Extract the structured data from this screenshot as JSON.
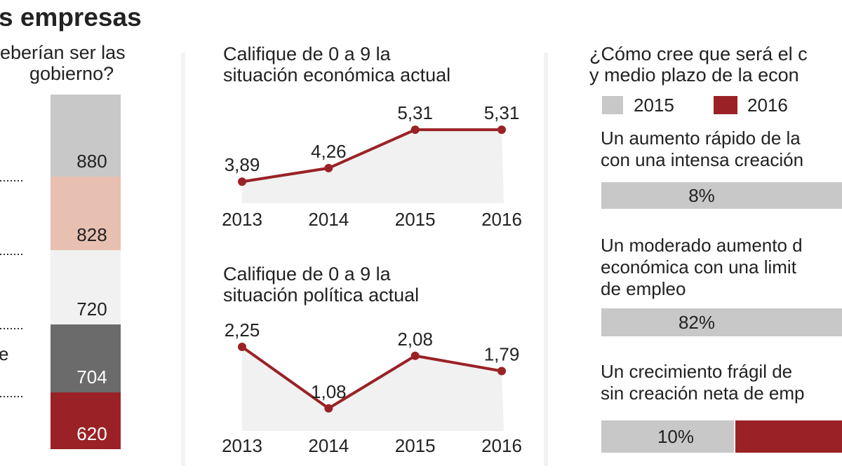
{
  "title": "s empresas",
  "chart_data": [
    {
      "type": "stacked_column",
      "title": [
        "eberían ser las",
        "gobierno?"
      ],
      "categories": [
        null,
        null,
        null,
        "e",
        null
      ],
      "values": [
        880,
        828,
        720,
        704,
        620
      ],
      "colors": [
        "#c8c8c8",
        "#e8c0b2",
        "#f1f1f1",
        "#6b6b6b",
        "#9a2226"
      ]
    },
    {
      "type": "line",
      "title": [
        "Califique de 0 a 9 la",
        "situación económica actual"
      ],
      "categories": [
        "2013",
        "2014",
        "2015",
        "2016"
      ],
      "values": [
        3.89,
        4.26,
        5.31,
        5.31
      ],
      "value_labels": [
        "3,89",
        "4,26",
        "5,31",
        "5,31"
      ],
      "color": "#9a2226",
      "ylim": [
        3.3,
        5.6
      ]
    },
    {
      "type": "line",
      "title": [
        "Califique de 0 a 9 la",
        "situación política actual"
      ],
      "categories": [
        "2013",
        "2014",
        "2015",
        "2016"
      ],
      "values": [
        2.25,
        1.08,
        2.08,
        1.79
      ],
      "value_labels": [
        "2,25",
        "1,08",
        "2,08",
        "1,79"
      ],
      "color": "#9a2226",
      "ylim": [
        0.65,
        2.45
      ]
    },
    {
      "type": "hbar",
      "title": [
        "¿Cómo cree que será el c",
        "y medio plazo de la econ"
      ],
      "categories": [
        [
          "Un aumento rápido de la",
          "con una intensa creación"
        ],
        [
          "Un moderado aumento d",
          "económica con una limit",
          "de empleo"
        ],
        [
          "Un crecimiento frágil de",
          "sin creación neta de emp"
        ]
      ],
      "series": [
        {
          "name": "2015",
          "color": "#c8c8c8",
          "values": [
            8,
            82,
            10
          ],
          "value_labels": [
            "8%",
            "82%",
            "10%"
          ]
        },
        {
          "name": "2016",
          "color": "#9a2226",
          "values": [
            null,
            null,
            null
          ]
        }
      ]
    }
  ]
}
